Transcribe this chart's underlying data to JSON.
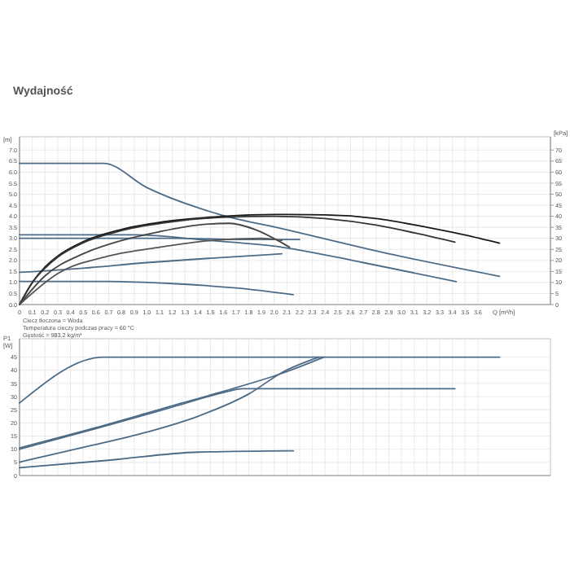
{
  "chart_data": [
    {
      "type": "line",
      "title": "Wydajność",
      "xlabel": "Q [m³/h]",
      "ylabel": "[m]",
      "y2label": "[kPa]",
      "xlim": [
        0,
        4.17
      ],
      "ylim": [
        0,
        7.6
      ],
      "y2lim": [
        0,
        76
      ],
      "xticks": [
        0,
        0.1,
        0.2,
        0.3,
        0.4,
        0.5,
        0.6,
        0.7,
        0.8,
        0.9,
        {
          "value": 1,
          "label": "1.0"
        },
        1.1,
        1.2,
        1.3,
        1.4,
        1.5,
        1.6,
        1.7,
        1.8,
        1.9,
        {
          "value": 2,
          "label": "2.0"
        },
        2.1,
        2.2,
        2.3,
        2.4,
        2.5,
        2.6,
        2.7,
        2.8,
        2.9,
        {
          "value": 3,
          "label": "3.0"
        },
        3.1,
        3.2,
        3.3,
        3.4,
        3.5,
        3.6
      ],
      "yticks": [
        {
          "value": 0,
          "label": "0.0"
        },
        0.5,
        {
          "value": 1,
          "label": "1.0"
        },
        1.5,
        {
          "value": 2,
          "label": "2.0"
        },
        2.5,
        {
          "value": 3,
          "label": "3.0"
        },
        3.5,
        {
          "value": 4,
          "label": "4.0"
        },
        4.5,
        {
          "value": 5,
          "label": "5.0"
        },
        5.5,
        {
          "value": 6,
          "label": "6.0"
        },
        6.5,
        {
          "value": 7,
          "label": "7.0"
        }
      ],
      "y2ticks": [
        0,
        5,
        10,
        15,
        20,
        25,
        30,
        35,
        40,
        45,
        50,
        55,
        60,
        65,
        70
      ],
      "grid": true,
      "annotations": [
        "Ciecz tłoczona = Woda",
        "Temperatura cieczy podczas pracy = 60 °C",
        "Gęstość = 983.2 kg/m³"
      ],
      "series": [
        {
          "color": "#4d6b87",
          "x": [
            0,
            0.66,
            1.0,
            1.56,
            2.09,
            2.9,
            3.77
          ],
          "values": [
            6.4,
            6.4,
            5.3,
            4.1,
            3.4,
            2.3,
            1.28
          ]
        },
        {
          "color": "#4d6b87",
          "x": [
            0,
            0.9,
            1.5,
            2.06,
            2.7,
            3.43
          ],
          "values": [
            3.16,
            3.16,
            2.9,
            2.6,
            1.9,
            1.04
          ]
        },
        {
          "color": "#4d6b87",
          "x": [
            0,
            1.2,
            1.8,
            2.2
          ],
          "values": [
            3.0,
            3.0,
            2.95,
            2.95
          ]
        },
        {
          "color": "#4d6b87",
          "x": [
            0,
            0.5,
            1.0,
            1.5,
            2.06
          ],
          "values": [
            1.46,
            1.65,
            1.9,
            2.1,
            2.3
          ]
        },
        {
          "color": "#4d6b87",
          "x": [
            0,
            0.7,
            1.2,
            1.7,
            2.15
          ],
          "values": [
            1.05,
            1.05,
            0.95,
            0.75,
            0.45
          ]
        },
        {
          "color": "#1a1a1a",
          "x": [
            0,
            0.1,
            0.2,
            0.3,
            0.5,
            0.8,
            1.2,
            1.6,
            2.0,
            2.4,
            2.8,
            3.2,
            3.5,
            3.77
          ],
          "values": [
            0,
            1.0,
            1.7,
            2.2,
            2.85,
            3.4,
            3.8,
            4.0,
            4.08,
            4.06,
            3.9,
            3.5,
            3.15,
            2.78
          ]
        },
        {
          "color": "#333333",
          "x": [
            0,
            0.1,
            0.2,
            0.3,
            0.5,
            0.8,
            1.2,
            1.6,
            2.0,
            2.4,
            2.8,
            3.1,
            3.42
          ],
          "values": [
            0,
            1.0,
            1.65,
            2.15,
            2.8,
            3.35,
            3.75,
            3.95,
            4.0,
            3.9,
            3.6,
            3.25,
            2.83
          ]
        },
        {
          "color": "#444444",
          "x": [
            0,
            0.2,
            0.5,
            0.8,
            1.1,
            1.4,
            1.65,
            1.85,
            2.06,
            2.12
          ],
          "values": [
            0,
            1.3,
            2.3,
            2.9,
            3.3,
            3.6,
            3.68,
            3.4,
            2.8,
            2.6
          ]
        },
        {
          "color": "#555555",
          "x": [
            0,
            0.3,
            0.7,
            1.1,
            1.5,
            1.9,
            2.06
          ],
          "values": [
            0,
            1.4,
            2.2,
            2.6,
            2.9,
            3.0,
            2.9
          ]
        }
      ]
    },
    {
      "type": "line",
      "ylabel": "P1 [W]",
      "xlim": [
        0,
        4.17
      ],
      "ylim": [
        0,
        52
      ],
      "xticks": [
        0,
        0.1,
        0.2,
        0.3,
        0.4,
        0.5,
        0.6,
        0.7,
        0.8,
        0.9,
        1,
        1.1,
        1.2,
        1.3,
        1.4,
        1.5,
        1.6,
        1.7,
        1.8,
        1.9,
        2,
        2.1,
        2.2,
        2.3,
        2.4,
        2.5,
        2.6,
        2.7,
        2.8,
        2.9,
        3,
        3.1,
        3.2,
        3.3,
        3.4,
        3.5,
        3.6
      ],
      "yticks": [
        0,
        5,
        10,
        15,
        20,
        25,
        30,
        35,
        40,
        45
      ],
      "tick_labels": "y",
      "grid": true,
      "series": [
        {
          "color": "#4d6b87",
          "x": [
            0,
            0.66,
            3.77
          ],
          "values": [
            27.6,
            45,
            45
          ]
        },
        {
          "color": "#4d6b87",
          "x": [
            0,
            0.6,
            1.2,
            1.6,
            2.07,
            2.39
          ],
          "values": [
            10.5,
            18.2,
            26.5,
            32,
            39,
            45
          ]
        },
        {
          "color": "#4d6b87",
          "x": [
            0,
            0.6,
            1.2,
            1.6,
            1.75,
            3.42
          ],
          "values": [
            10,
            17.8,
            26,
            31.5,
            33,
            33
          ]
        },
        {
          "color": "#4d6b87",
          "x": [
            0,
            0.5,
            1.0,
            1.4,
            1.8,
            2.07,
            2.35
          ],
          "values": [
            5.1,
            10.7,
            16.5,
            22.5,
            31,
            39.4,
            45
          ]
        },
        {
          "color": "#4d6b87",
          "x": [
            0,
            0.7,
            1.4,
            2.15
          ],
          "values": [
            3,
            5.8,
            8.9,
            9.4
          ]
        }
      ]
    }
  ]
}
